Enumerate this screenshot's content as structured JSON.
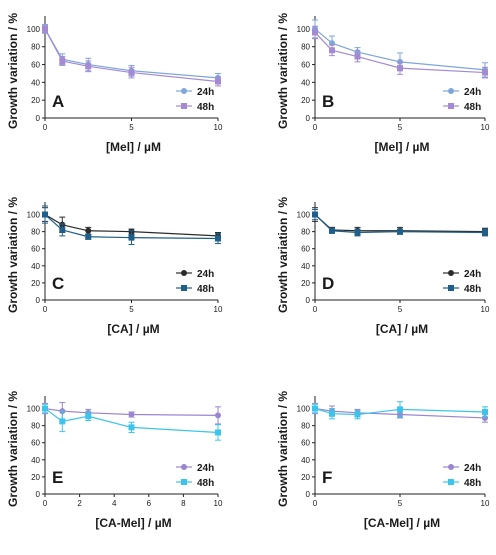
{
  "chart_data": [
    {
      "type": "line",
      "panel": "A",
      "xlabel": "[Mel] / µM",
      "ylabel": "Growth variation / %",
      "xlim": [
        0,
        10
      ],
      "ylim": [
        0,
        110
      ],
      "xticks": [
        0,
        5,
        10
      ],
      "yticks": [
        0,
        20,
        40,
        60,
        80,
        100
      ],
      "legend_position": "bottom-right",
      "x": [
        0,
        1,
        2.5,
        5,
        10
      ],
      "series": [
        {
          "name": "24h",
          "color": "#7fa6d8",
          "marker": "circle",
          "values": [
            100,
            66,
            60,
            53,
            45
          ],
          "errors": [
            5,
            6,
            7,
            6,
            5
          ]
        },
        {
          "name": "48h",
          "color": "#a48ad2",
          "marker": "square",
          "values": [
            100,
            64,
            58,
            51,
            41
          ],
          "errors": [
            4,
            5,
            6,
            6,
            5
          ]
        }
      ]
    },
    {
      "type": "line",
      "panel": "B",
      "xlabel": "[Mel] / µM",
      "ylabel": "Growth variation / %",
      "xlim": [
        0,
        10
      ],
      "ylim": [
        0,
        110
      ],
      "xticks": [
        0,
        5,
        10
      ],
      "yticks": [
        0,
        20,
        40,
        60,
        80,
        100
      ],
      "legend_position": "bottom-right",
      "x": [
        0,
        1,
        2.5,
        5,
        10
      ],
      "series": [
        {
          "name": "24h",
          "color": "#7fa6d8",
          "marker": "circle",
          "values": [
            100,
            84,
            74,
            63,
            54
          ],
          "errors": [
            10,
            8,
            5,
            10,
            8
          ]
        },
        {
          "name": "48h",
          "color": "#a48ad2",
          "marker": "square",
          "values": [
            96,
            76,
            69,
            56,
            51
          ],
          "errors": [
            7,
            6,
            6,
            7,
            6
          ]
        }
      ]
    },
    {
      "type": "line",
      "panel": "C",
      "xlabel": "[CA] / µM",
      "ylabel": "Growth variation / %",
      "xlim": [
        0,
        10
      ],
      "ylim": [
        0,
        110
      ],
      "xticks": [
        0,
        5,
        10
      ],
      "yticks": [
        0,
        20,
        40,
        60,
        80,
        100
      ],
      "legend_position": "bottom-right",
      "x": [
        0,
        1,
        2.5,
        5,
        10
      ],
      "series": [
        {
          "name": "24h",
          "color": "#2b2b2b",
          "marker": "circle",
          "values": [
            100,
            88,
            81,
            80,
            75
          ],
          "errors": [
            8,
            9,
            4,
            3,
            4
          ]
        },
        {
          "name": "48h",
          "color": "#1f5f8b",
          "marker": "square",
          "values": [
            100,
            82,
            74,
            73,
            72
          ],
          "errors": [
            10,
            7,
            3,
            8,
            6
          ]
        }
      ]
    },
    {
      "type": "line",
      "panel": "D",
      "xlabel": "[CA] / µM",
      "ylabel": "Growth variation / %",
      "xlim": [
        0,
        10
      ],
      "ylim": [
        0,
        110
      ],
      "xticks": [
        0,
        5,
        10
      ],
      "yticks": [
        0,
        20,
        40,
        60,
        80,
        100
      ],
      "legend_position": "bottom-right",
      "x": [
        0,
        1,
        2.5,
        5,
        10
      ],
      "series": [
        {
          "name": "24h",
          "color": "#2b2b2b",
          "marker": "circle",
          "values": [
            100,
            82,
            81,
            81,
            80
          ],
          "errors": [
            8,
            3,
            4,
            4,
            4
          ]
        },
        {
          "name": "48h",
          "color": "#1f5f8b",
          "marker": "square",
          "values": [
            100,
            81,
            79,
            80,
            79
          ],
          "errors": [
            6,
            3,
            4,
            3,
            4
          ]
        }
      ]
    },
    {
      "type": "line",
      "panel": "E",
      "xlabel": "[CA-Mel] / µM",
      "ylabel": "Growth variation / %",
      "xlim": [
        0,
        10
      ],
      "ylim": [
        0,
        110
      ],
      "xticks": [
        0,
        2,
        4,
        6,
        8,
        10
      ],
      "yticks": [
        0,
        20,
        40,
        60,
        80,
        100
      ],
      "legend_position": "bottom-right",
      "x": [
        0,
        1,
        2.5,
        5,
        10
      ],
      "series": [
        {
          "name": "24h",
          "color": "#9a86cf",
          "marker": "circle",
          "values": [
            100,
            97,
            95,
            93,
            92
          ],
          "errors": [
            6,
            10,
            4,
            3,
            10
          ]
        },
        {
          "name": "48h",
          "color": "#3cc4ea",
          "marker": "square",
          "values": [
            100,
            85,
            91,
            78,
            72
          ],
          "errors": [
            5,
            12,
            5,
            6,
            9
          ]
        }
      ]
    },
    {
      "type": "line",
      "panel": "F",
      "xlabel": "[CA-Mel] / µM",
      "ylabel": "Growth variation / %",
      "xlim": [
        0,
        10
      ],
      "ylim": [
        0,
        110
      ],
      "xticks": [
        0,
        5,
        10
      ],
      "yticks": [
        0,
        20,
        40,
        60,
        80,
        100
      ],
      "legend_position": "bottom-right",
      "x": [
        0,
        1,
        2.5,
        5,
        10
      ],
      "series": [
        {
          "name": "24h",
          "color": "#9a86cf",
          "marker": "circle",
          "values": [
            100,
            97,
            95,
            93,
            89
          ],
          "errors": [
            6,
            6,
            4,
            4,
            5
          ]
        },
        {
          "name": "48h",
          "color": "#3cc4ea",
          "marker": "square",
          "values": [
            100,
            94,
            93,
            99,
            96
          ],
          "errors": [
            5,
            6,
            5,
            9,
            6
          ]
        }
      ]
    }
  ]
}
